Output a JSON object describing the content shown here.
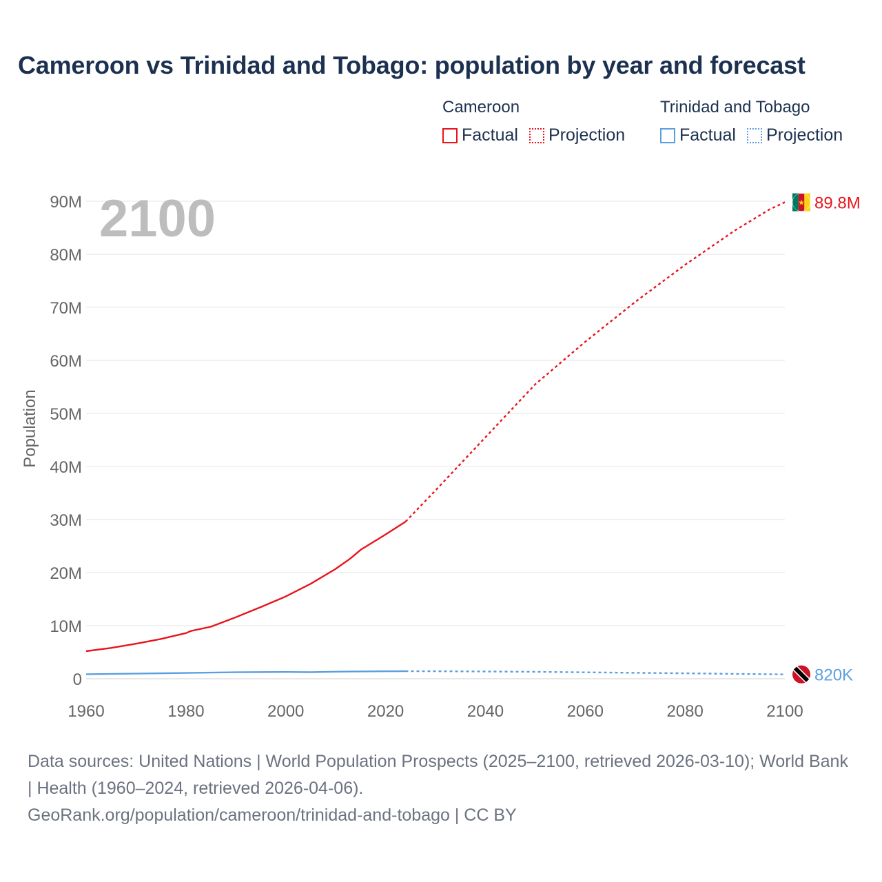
{
  "title": "Cameroon vs Trinidad and Tobago: population by year and forecast",
  "legend": {
    "groups": [
      {
        "name": "Cameroon",
        "factual": "Factual",
        "projection": "Projection",
        "color": "#e8141c"
      },
      {
        "name": "Trinidad and Tobago",
        "factual": "Factual",
        "projection": "Projection",
        "color": "#5b9fe0"
      }
    ]
  },
  "year_label": "2100",
  "source": {
    "line1": "Data sources: United Nations | World Population Prospects (2025–2100, retrieved 2026-03-10); World Bank | Health (1960–2024, retrieved 2026-04-06).",
    "line2": "GeoRank.org/population/cameroon/trinidad-and-tobago | CC BY"
  },
  "chart_data": {
    "type": "line",
    "title": "Cameroon vs Trinidad and Tobago: population by year and forecast",
    "xlabel": "",
    "ylabel": "Population",
    "xlim": [
      1960,
      2100
    ],
    "ylim": [
      0,
      90000000
    ],
    "x_ticks": [
      1960,
      1980,
      2000,
      2020,
      2040,
      2060,
      2080,
      2100
    ],
    "x_tick_labels": [
      "1960",
      "1980",
      "2000",
      "2020",
      "2040",
      "2060",
      "2080",
      "2100"
    ],
    "y_ticks": [
      0,
      10000000,
      20000000,
      30000000,
      40000000,
      50000000,
      60000000,
      70000000,
      80000000,
      90000000
    ],
    "y_tick_labels": [
      "0",
      "10M",
      "20M",
      "30M",
      "40M",
      "50M",
      "60M",
      "70M",
      "80M",
      "90M"
    ],
    "grid": true,
    "series": [
      {
        "name": "Cameroon",
        "color": "#e8141c",
        "end_label": "89.8M",
        "end_icon": "cameroon-flag-icon",
        "factual": [
          [
            1960,
            5200000
          ],
          [
            1965,
            5800000
          ],
          [
            1970,
            6600000
          ],
          [
            1975,
            7500000
          ],
          [
            1980,
            8600000
          ],
          [
            1981,
            9000000
          ],
          [
            1985,
            9800000
          ],
          [
            1990,
            11600000
          ],
          [
            1995,
            13500000
          ],
          [
            2000,
            15500000
          ],
          [
            2005,
            17900000
          ],
          [
            2010,
            20700000
          ],
          [
            2013,
            22700000
          ],
          [
            2015,
            24300000
          ],
          [
            2020,
            27200000
          ],
          [
            2024,
            29600000
          ]
        ],
        "projection": [
          [
            2024,
            29600000
          ],
          [
            2030,
            35500000
          ],
          [
            2040,
            45500000
          ],
          [
            2050,
            55500000
          ],
          [
            2060,
            63500000
          ],
          [
            2070,
            71000000
          ],
          [
            2080,
            78000000
          ],
          [
            2090,
            84500000
          ],
          [
            2097,
            88500000
          ],
          [
            2100,
            89800000
          ]
        ]
      },
      {
        "name": "Trinidad and Tobago",
        "color": "#5b9fe0",
        "end_label": "820K",
        "end_icon": "trinidad-and-tobago-flag-icon",
        "factual": [
          [
            1960,
            850000
          ],
          [
            1970,
            960000
          ],
          [
            1980,
            1090000
          ],
          [
            1990,
            1220000
          ],
          [
            2000,
            1270000
          ],
          [
            2005,
            1240000
          ],
          [
            2010,
            1320000
          ],
          [
            2015,
            1380000
          ],
          [
            2020,
            1400000
          ],
          [
            2024,
            1420000
          ]
        ],
        "projection": [
          [
            2024,
            1420000
          ],
          [
            2030,
            1410000
          ],
          [
            2040,
            1370000
          ],
          [
            2050,
            1300000
          ],
          [
            2060,
            1210000
          ],
          [
            2070,
            1120000
          ],
          [
            2080,
            1020000
          ],
          [
            2090,
            910000
          ],
          [
            2100,
            820000
          ]
        ]
      }
    ]
  }
}
